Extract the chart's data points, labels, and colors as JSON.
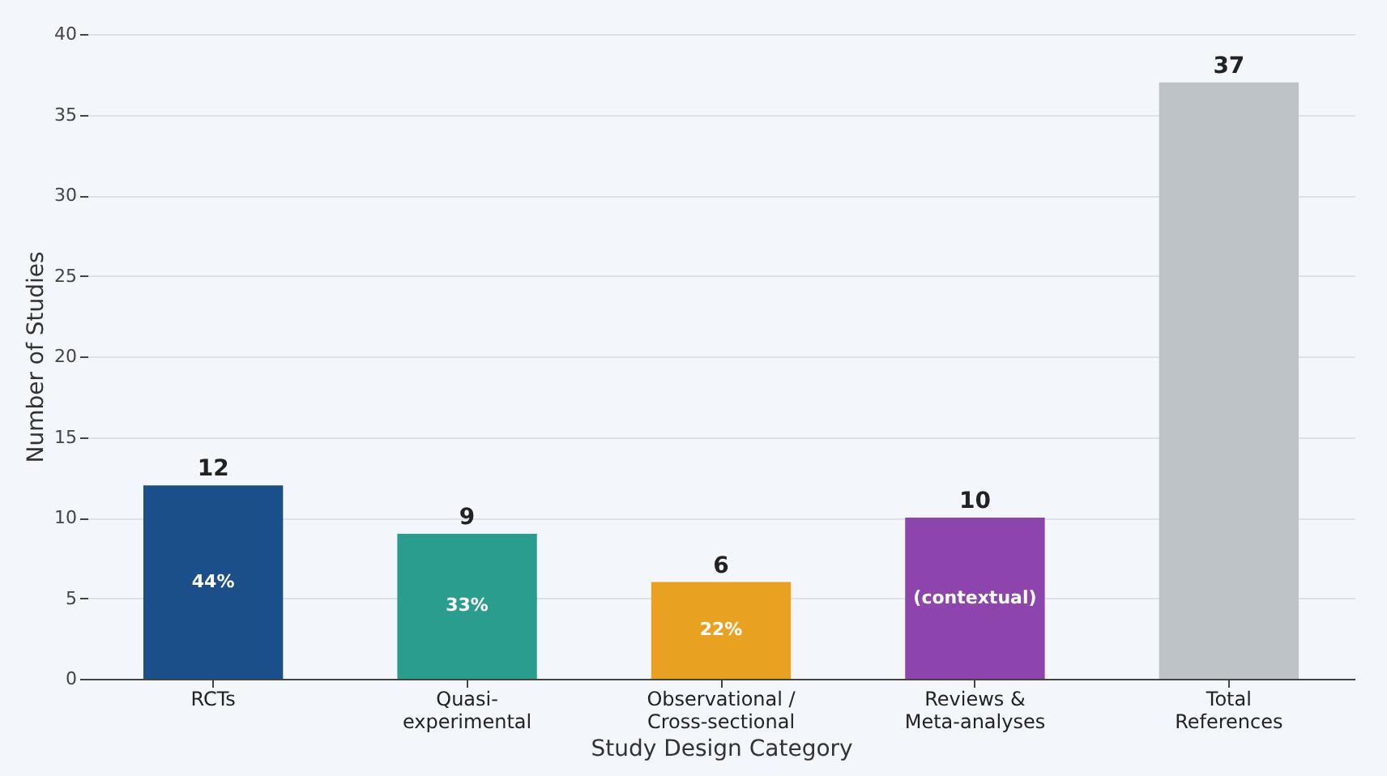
{
  "chart_data": {
    "type": "bar",
    "xlabel": "Study Design Category",
    "ylabel": "Number of Studies",
    "categories": [
      "RCTs",
      "Quasi-\nexperimental",
      "Observational /\nCross-sectional",
      "Reviews &\nMeta-analyses",
      "Total\nReferences"
    ],
    "values": [
      12,
      9,
      6,
      10,
      37
    ],
    "colors": [
      "#1b4f8a",
      "#2a9d8f",
      "#e9a122",
      "#8e44ad",
      "#bdc3c7"
    ],
    "ylim": [
      0,
      40
    ],
    "yticks": [
      0,
      5,
      10,
      15,
      20,
      25,
      30,
      35,
      40
    ],
    "grid": "y",
    "data_labels": true,
    "annotations": [
      "44%",
      "33%",
      "22%",
      "(contextual)"
    ]
  }
}
